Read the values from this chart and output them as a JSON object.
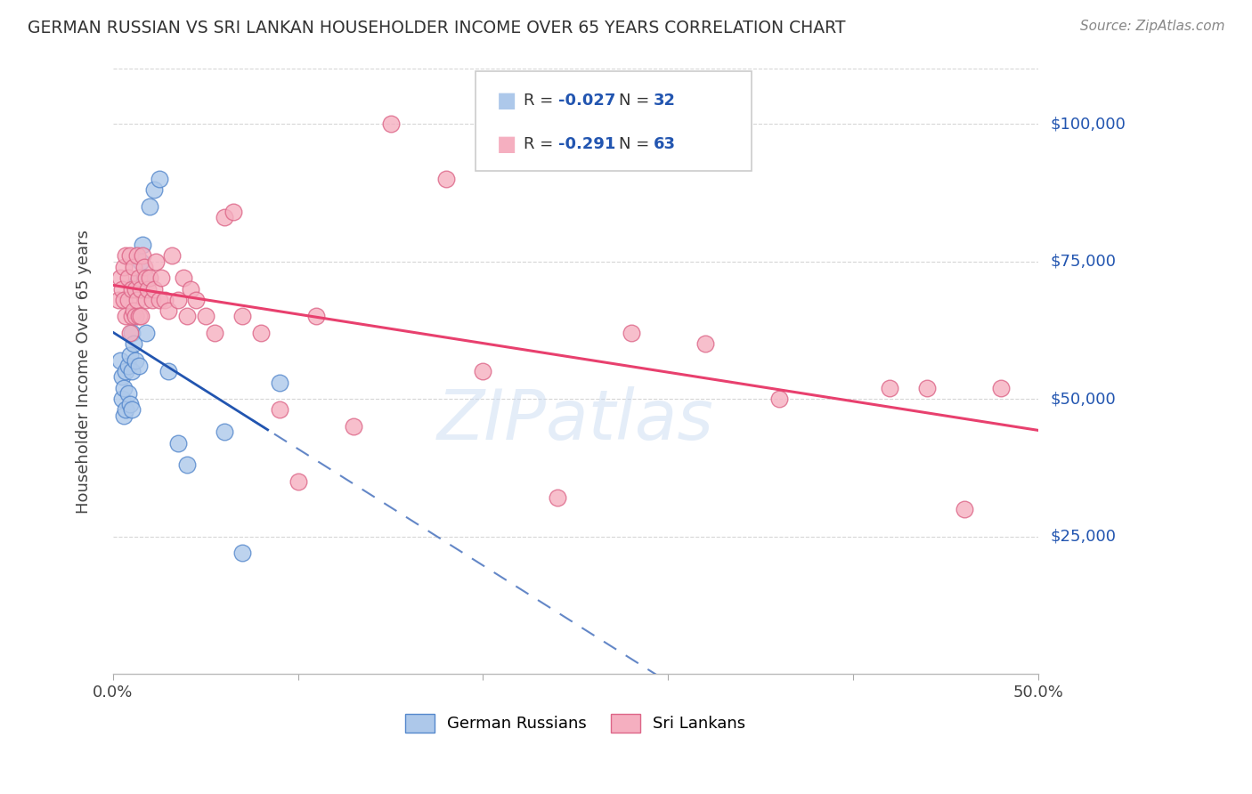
{
  "title": "GERMAN RUSSIAN VS SRI LANKAN HOUSEHOLDER INCOME OVER 65 YEARS CORRELATION CHART",
  "source": "Source: ZipAtlas.com",
  "ylabel": "Householder Income Over 65 years",
  "xmin": 0.0,
  "xmax": 0.5,
  "ymin": 0,
  "ymax": 110000,
  "blue_r": "-0.027",
  "blue_n": "32",
  "pink_r": "-0.291",
  "pink_n": "63",
  "blue_color": "#adc8ea",
  "pink_color": "#f5afc0",
  "blue_line_color": "#2255b0",
  "pink_line_color": "#e8406e",
  "blue_edge_color": "#5588cc",
  "pink_edge_color": "#dd6688",
  "watermark": "ZIPatlas",
  "legend_blue_label": "German Russians",
  "legend_pink_label": "Sri Lankans",
  "blue_points_x": [
    0.004,
    0.005,
    0.005,
    0.006,
    0.006,
    0.007,
    0.007,
    0.008,
    0.008,
    0.009,
    0.009,
    0.01,
    0.01,
    0.01,
    0.011,
    0.012,
    0.012,
    0.013,
    0.014,
    0.015,
    0.016,
    0.017,
    0.018,
    0.02,
    0.022,
    0.025,
    0.03,
    0.035,
    0.04,
    0.06,
    0.07,
    0.09
  ],
  "blue_points_y": [
    57000,
    54000,
    50000,
    52000,
    47000,
    55000,
    48000,
    56000,
    51000,
    58000,
    49000,
    62000,
    55000,
    48000,
    60000,
    65000,
    57000,
    71000,
    56000,
    75000,
    78000,
    72000,
    62000,
    85000,
    88000,
    90000,
    55000,
    42000,
    38000,
    44000,
    22000,
    53000
  ],
  "pink_points_x": [
    0.003,
    0.004,
    0.005,
    0.006,
    0.006,
    0.007,
    0.007,
    0.008,
    0.008,
    0.009,
    0.009,
    0.01,
    0.01,
    0.011,
    0.011,
    0.012,
    0.012,
    0.013,
    0.013,
    0.014,
    0.014,
    0.015,
    0.015,
    0.016,
    0.017,
    0.018,
    0.018,
    0.019,
    0.02,
    0.021,
    0.022,
    0.023,
    0.025,
    0.026,
    0.028,
    0.03,
    0.032,
    0.035,
    0.038,
    0.04,
    0.042,
    0.045,
    0.05,
    0.055,
    0.06,
    0.065,
    0.07,
    0.08,
    0.09,
    0.1,
    0.11,
    0.13,
    0.15,
    0.18,
    0.2,
    0.24,
    0.28,
    0.32,
    0.36,
    0.42,
    0.44,
    0.46,
    0.48
  ],
  "pink_points_y": [
    68000,
    72000,
    70000,
    74000,
    68000,
    76000,
    65000,
    72000,
    68000,
    76000,
    62000,
    70000,
    65000,
    74000,
    66000,
    70000,
    65000,
    76000,
    68000,
    72000,
    65000,
    70000,
    65000,
    76000,
    74000,
    72000,
    68000,
    70000,
    72000,
    68000,
    70000,
    75000,
    68000,
    72000,
    68000,
    66000,
    76000,
    68000,
    72000,
    65000,
    70000,
    68000,
    65000,
    62000,
    83000,
    84000,
    65000,
    62000,
    48000,
    35000,
    65000,
    45000,
    100000,
    90000,
    55000,
    32000,
    62000,
    60000,
    50000,
    52000,
    52000,
    30000,
    52000
  ],
  "background_color": "#ffffff",
  "grid_color": "#cccccc",
  "right_label_color": "#2255b0",
  "title_color": "#333333",
  "source_color": "#888888"
}
